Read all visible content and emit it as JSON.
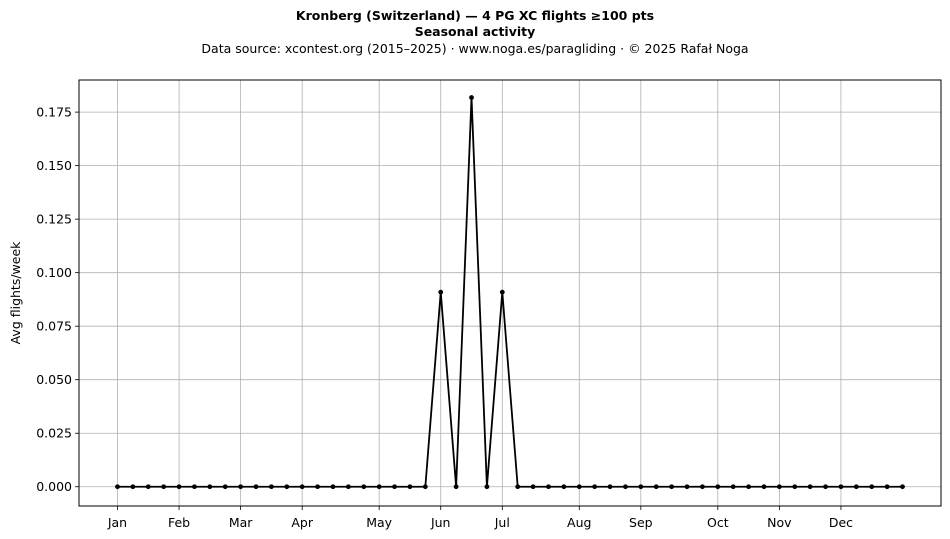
{
  "header": {
    "title": "Kronberg (Switzerland)  —  4 PG XC flights ≥100 pts",
    "subtitle": "Seasonal activity",
    "source": "Data source: xcontest.org (2015–2025)  ·  www.noga.es/paragliding  ·  © 2025 Rafał Noga"
  },
  "chart_data": {
    "type": "line",
    "title": "Kronberg (Switzerland)  —  4 PG XC flights ≥100 pts",
    "subtitle": "Seasonal activity",
    "xlabel": "",
    "ylabel": "Avg flights/week",
    "x_unit": "week of year",
    "xlim": [
      -1.5,
      54.5
    ],
    "ylim": [
      -0.009,
      0.19
    ],
    "y_ticks": [
      0.0,
      0.025,
      0.05,
      0.075,
      0.1,
      0.125,
      0.15,
      0.175
    ],
    "y_tick_labels": [
      "0.000",
      "0.025",
      "0.050",
      "0.075",
      "0.100",
      "0.125",
      "0.150",
      "0.175"
    ],
    "month_ticks": [
      {
        "label": "Jan",
        "week": 1
      },
      {
        "label": "Feb",
        "week": 5
      },
      {
        "label": "Mar",
        "week": 9
      },
      {
        "label": "Apr",
        "week": 13
      },
      {
        "label": "May",
        "week": 18
      },
      {
        "label": "Jun",
        "week": 22
      },
      {
        "label": "Jul",
        "week": 26
      },
      {
        "label": "Aug",
        "week": 31
      },
      {
        "label": "Sep",
        "week": 35
      },
      {
        "label": "Oct",
        "week": 40
      },
      {
        "label": "Nov",
        "week": 44
      },
      {
        "label": "Dec",
        "week": 48
      }
    ],
    "grid": true,
    "color": "#000000",
    "x": [
      1,
      2,
      3,
      4,
      5,
      6,
      7,
      8,
      9,
      10,
      11,
      12,
      13,
      14,
      15,
      16,
      17,
      18,
      19,
      20,
      21,
      22,
      23,
      24,
      25,
      26,
      27,
      28,
      29,
      30,
      31,
      32,
      33,
      34,
      35,
      36,
      37,
      38,
      39,
      40,
      41,
      42,
      43,
      44,
      45,
      46,
      47,
      48,
      49,
      50,
      51,
      52
    ],
    "values": [
      0,
      0,
      0,
      0,
      0,
      0,
      0,
      0,
      0,
      0,
      0,
      0,
      0,
      0,
      0,
      0,
      0,
      0,
      0,
      0,
      0,
      0.0909,
      0,
      0.1818,
      0,
      0.0909,
      0,
      0,
      0,
      0,
      0,
      0,
      0,
      0,
      0,
      0,
      0,
      0,
      0,
      0,
      0,
      0,
      0,
      0,
      0,
      0,
      0,
      0,
      0,
      0,
      0,
      0
    ]
  }
}
